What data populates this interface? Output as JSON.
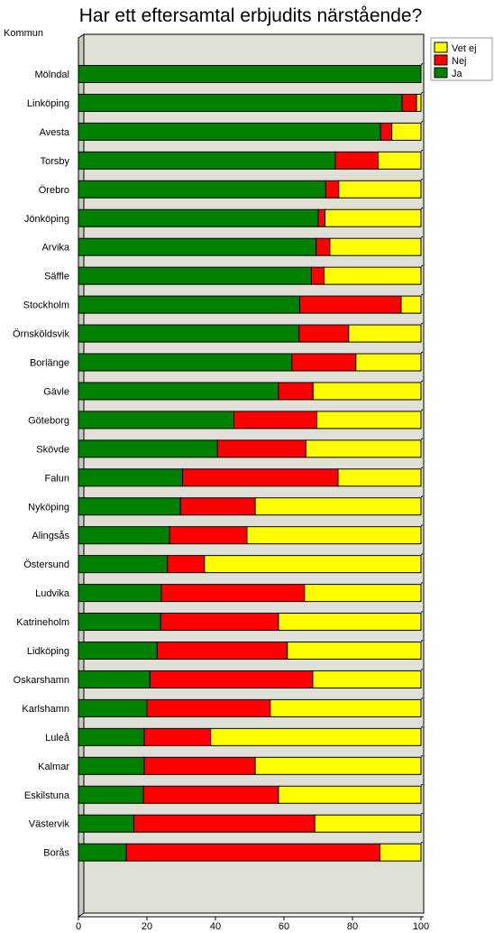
{
  "chart_data": {
    "type": "bar",
    "orientation": "horizontal",
    "stacked": true,
    "title": "Har ett eftersamtal erbjudits närstående?",
    "ylabel": "Kommun",
    "xlabel": "",
    "xlim": [
      0,
      100
    ],
    "x_ticks": [
      "0",
      "20",
      "40",
      "60",
      "80",
      "100"
    ],
    "grid": false,
    "legend_position": "top-right",
    "categories": [
      "Mölndal",
      "Linköping",
      "Avesta",
      "Torsby",
      "Örebro",
      "Jönköping",
      "Arvika",
      "Säffle",
      "Stockholm",
      "Örnsköldsvik",
      "Borlänge",
      "Gävle",
      "Göteborg",
      "Skövde",
      "Falun",
      "Nyköping",
      "Alingsås",
      "Östersund",
      "Ludvika",
      "Katrineholm",
      "Lidköping",
      "Oskarshamn",
      "Karlshamn",
      "Luleå",
      "Kalmar",
      "Eskilstuna",
      "Västervik",
      "Borås"
    ],
    "series": [
      {
        "name": "Ja",
        "color": "#008000",
        "values": [
          100,
          94.5,
          88.2,
          75,
          72.2,
          70,
          69.4,
          68,
          64.6,
          64.4,
          62.3,
          58.4,
          45.4,
          40.6,
          30.4,
          29.8,
          26.6,
          26,
          24.2,
          24,
          23,
          20.9,
          20,
          19.2,
          19.2,
          19,
          16.2,
          14
        ]
      },
      {
        "name": "Nej",
        "color": "#ff0000",
        "values": [
          0,
          4.2,
          3.3,
          12.5,
          3.8,
          2,
          4,
          3.7,
          29.6,
          14.5,
          18.7,
          10.1,
          24.2,
          25.8,
          45.4,
          21.8,
          22.6,
          10.8,
          41.8,
          34.4,
          38,
          47.5,
          36,
          19.4,
          32.4,
          39.4,
          52.8,
          74
        ]
      },
      {
        "name": "Vet ej",
        "color": "#ffff00",
        "values": [
          0,
          1.3,
          8.5,
          12.5,
          24,
          28,
          26.6,
          28.3,
          5.8,
          21.1,
          19,
          31.5,
          30.4,
          33.6,
          24.2,
          48.4,
          50.8,
          63.2,
          34,
          41.6,
          39,
          31.6,
          44,
          61.4,
          48.4,
          41.6,
          31,
          12
        ]
      }
    ],
    "legend_order": [
      "Vet ej",
      "Nej",
      "Ja"
    ]
  },
  "colors": {
    "plot_background": "#e0e0d6",
    "bar_outline": "#000000"
  }
}
